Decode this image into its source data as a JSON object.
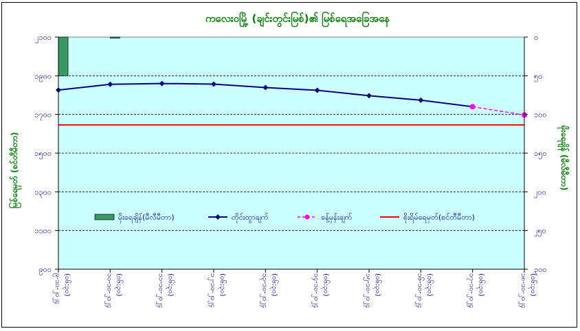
{
  "chart_data": {
    "type": "line",
    "title": "ကလေးဝမြို့ (ချင်းတွင်းမြစ်)၏ မြစ်ရေအခြေအနေ",
    "ylabel_left": "မြစ်ရေမှတ် (စင်တီမီတာ)",
    "ylabel_right": "မိုးရေချိန် (မီလီမီတာ)",
    "ylim_left": [
      900,
      2100
    ],
    "ylim_right": [
      0,
      300
    ],
    "yticks_left": [
      {
        "value": 900,
        "label": "၉၀၀"
      },
      {
        "value": 1100,
        "label": "၁၁၀၀"
      },
      {
        "value": 1300,
        "label": "၁၃၀၀"
      },
      {
        "value": 1500,
        "label": "၁၅၀၀"
      },
      {
        "value": 1700,
        "label": "၁၇၀၀"
      },
      {
        "value": 1900,
        "label": "၁၉၀၀"
      },
      {
        "value": 2100,
        "label": "၂၁၀၀"
      }
    ],
    "yticks_right": [
      {
        "value": 0,
        "label": "၀"
      },
      {
        "value": 50,
        "label": "၅၀"
      },
      {
        "value": 100,
        "label": "၁၀၀"
      },
      {
        "value": 150,
        "label": "၁၅၀"
      },
      {
        "value": 200,
        "label": "၂၀၀"
      },
      {
        "value": 250,
        "label": "၂၅၀"
      },
      {
        "value": 300,
        "label": "၃၀၀"
      }
    ],
    "categories": [
      {
        "date": "၉-၁၀-၂၀၂၄",
        "time": "(၀၆:၃၀)"
      },
      {
        "date": "၁၀-၁၀-၂၀၂၄",
        "time": "(၀၆:၃၀)"
      },
      {
        "date": "၁၁-၁၀-၂၀၂၄",
        "time": "(၀၆:၃၀)"
      },
      {
        "date": "၁၂-၁၀-၂၀၂၄",
        "time": "(၀၆:၃၀)"
      },
      {
        "date": "၁၃-၁၀-၂၀၂၄",
        "time": "(၀၆:၃၀)"
      },
      {
        "date": "၁၄-၁၀-၂၀၂၄",
        "time": "(၀၆:၃၀)"
      },
      {
        "date": "၁၅-၁၀-၂၀၂၄",
        "time": "(၀၆:၃၀)"
      },
      {
        "date": "၁၆-၁၀-၂၀၂၄",
        "time": "(၀၆:၃၀)"
      },
      {
        "date": "၁၇-၁၀-၂၀၂၄",
        "time": "(၀၆:၃၀)"
      },
      {
        "date": "၁၈-၁၀-၂၀၂၄",
        "time": "(၀၆:၃၀)"
      }
    ],
    "series": [
      {
        "name": "မိုးရေချိန်(မီလီမီတာ)",
        "kind": "bar",
        "axis": "right",
        "color": "#3a9a63",
        "values": [
          50,
          0.8,
          0,
          0,
          0,
          0,
          0,
          0,
          0,
          null
        ]
      },
      {
        "name": "တိုင်းထွာချက်",
        "kind": "line",
        "axis": "left",
        "color": "#000080",
        "values": [
          1826,
          1856,
          1860,
          1857,
          1839,
          1825,
          1797,
          1774,
          1740,
          null
        ]
      },
      {
        "name": "ခန့်မှန်းချက်",
        "kind": "line-dashed",
        "axis": "left",
        "color": "#ff00ff",
        "values": [
          null,
          null,
          null,
          null,
          null,
          null,
          null,
          null,
          1740,
          1697
        ]
      },
      {
        "name": "စိုးရိမ်ရေမှတ်(စင်တီမီတာ)",
        "kind": "hline",
        "axis": "left",
        "color": "#ff0000",
        "value": 1646
      }
    ],
    "grid": true,
    "legend": "bottom",
    "colors": {
      "plot_bg": "#ccffff",
      "title": "#008000",
      "axis_text": "#0000a0"
    }
  }
}
